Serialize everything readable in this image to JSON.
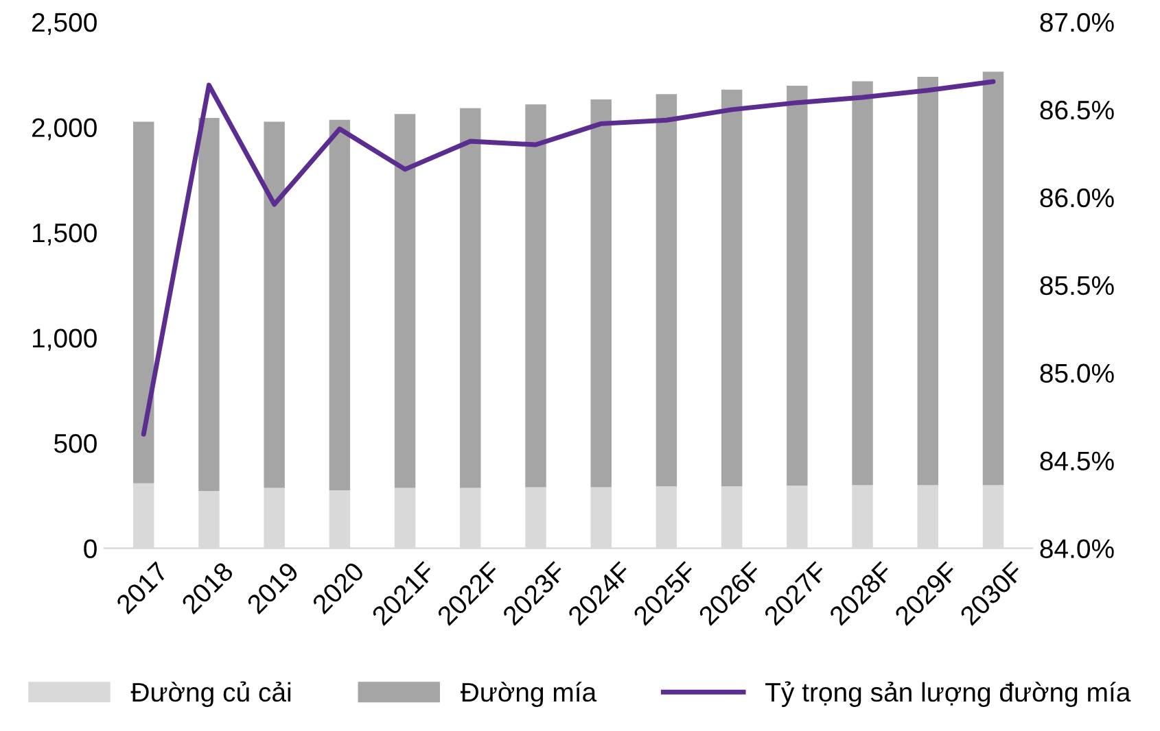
{
  "chart_data": {
    "type": "bar",
    "stacked": true,
    "categories": [
      "2017",
      "2018",
      "2019",
      "2020",
      "2021F",
      "2022F",
      "2023F",
      "2024F",
      "2025F",
      "2026F",
      "2027F",
      "2028F",
      "2029F",
      "2030F"
    ],
    "series": [
      {
        "name": "Đường củ cải",
        "color": "#d9d9d9",
        "values": [
          309,
          272,
          287,
          275,
          287,
          287,
          290,
          290,
          294,
          294,
          297,
          300,
          300,
          300
        ]
      },
      {
        "name": "Đường mía",
        "color": "#a5a5a5",
        "values": [
          1717,
          1772,
          1739,
          1760,
          1776,
          1803,
          1818,
          1842,
          1863,
          1884,
          1900,
          1918,
          1939,
          1964
        ]
      },
      {
        "name": "Tỷ trọng sản lượng đường mía",
        "type": "line",
        "axis": "y2",
        "color": "#5c2d91",
        "marker": "none",
        "line_style": "solid",
        "values": [
          84.65,
          86.64,
          85.96,
          86.39,
          86.16,
          86.32,
          86.3,
          86.42,
          86.44,
          86.5,
          86.54,
          86.57,
          86.61,
          86.66
        ]
      }
    ],
    "ylim": [
      0,
      2500
    ],
    "yticks": [
      {
        "value": 0,
        "label": "0"
      },
      {
        "value": 500,
        "label": "500"
      },
      {
        "value": 1000,
        "label": "1,000"
      },
      {
        "value": 1500,
        "label": "1,500"
      },
      {
        "value": 2000,
        "label": "2,000"
      },
      {
        "value": 2500,
        "label": "2,500"
      }
    ],
    "y2lim": [
      84.0,
      87.0
    ],
    "y2ticks": [
      {
        "value": 84.0,
        "label": "84.0%"
      },
      {
        "value": 84.5,
        "label": "84.5%"
      },
      {
        "value": 85.0,
        "label": "85.0%"
      },
      {
        "value": 85.5,
        "label": "85.5%"
      },
      {
        "value": 86.0,
        "label": "86.0%"
      },
      {
        "value": 86.5,
        "label": "86.5%"
      },
      {
        "value": 87.0,
        "label": "87.0%"
      }
    ],
    "grid": false,
    "legend": "bottom"
  }
}
